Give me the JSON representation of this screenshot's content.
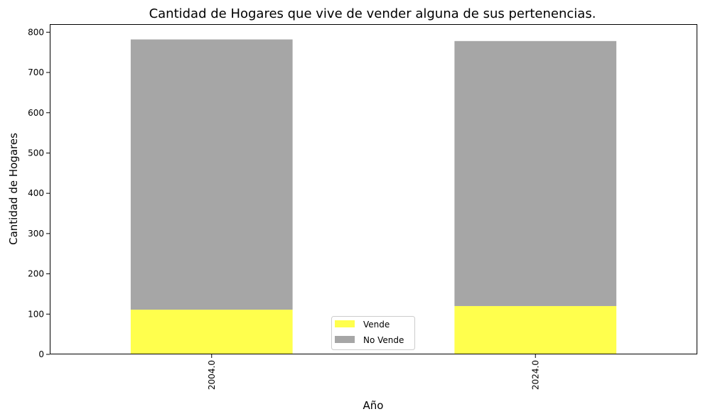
{
  "chart_data": {
    "type": "bar",
    "stacked": true,
    "title": "Cantidad de Hogares que vive de vender alguna de sus pertenencias.",
    "xlabel": "Año",
    "ylabel": "Cantidad de Hogares",
    "categories": [
      "2004.0",
      "2024.0"
    ],
    "series": [
      {
        "name": "Vende",
        "values": [
          111,
          120
        ],
        "color": "#ffff4d"
      },
      {
        "name": "No Vende",
        "values": [
          671,
          658
        ],
        "color": "#a6a6a6"
      }
    ],
    "ylim": [
      0,
      820
    ],
    "yticks": [
      0,
      100,
      200,
      300,
      400,
      500,
      600,
      700,
      800
    ],
    "grid": false,
    "legend": "lower-center",
    "x_tick_rotation": 90
  }
}
